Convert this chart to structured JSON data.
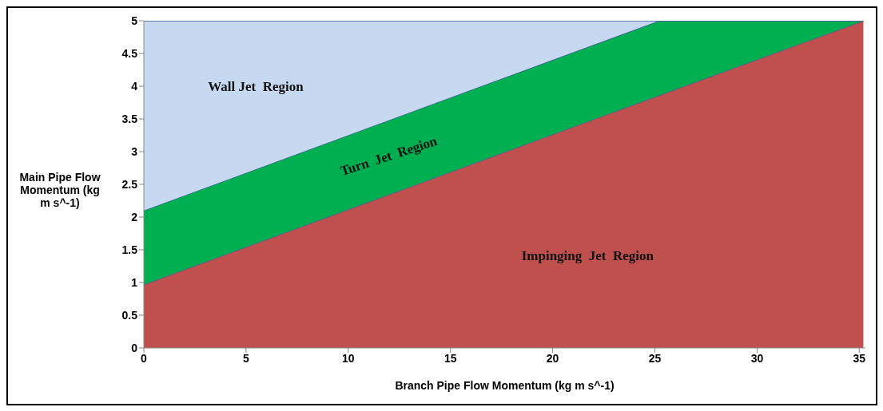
{
  "chart_data": {
    "type": "area",
    "stacked": true,
    "xlabel": "Branch Pipe Flow Momentum (kg m s^-1)",
    "ylabel": "Main Pipe Flow Momentum (kg m s^-1)",
    "x": [
      0,
      25.2,
      35.2
    ],
    "series": [
      {
        "name": "Impinging  Jet  Region",
        "color": "#c0504d",
        "values": [
          0.97,
          3.86,
          5
        ]
      },
      {
        "name": "Turn  Jet  Region",
        "color": "#00b050",
        "values": [
          1.13,
          1.14,
          0
        ]
      },
      {
        "name": "Wall Jet  Region",
        "color": "#c6d9f0",
        "values": [
          2.9,
          0,
          0
        ]
      }
    ],
    "xlim": [
      0,
      35.3
    ],
    "xticks": [
      0,
      5,
      10,
      15,
      20,
      25,
      30,
      35
    ],
    "ylim": [
      0,
      5
    ],
    "yticks": [
      0,
      0.5,
      1,
      1.5,
      2,
      2.5,
      3,
      3.5,
      4,
      4.5,
      5
    ],
    "grid": false,
    "legend": false
  }
}
